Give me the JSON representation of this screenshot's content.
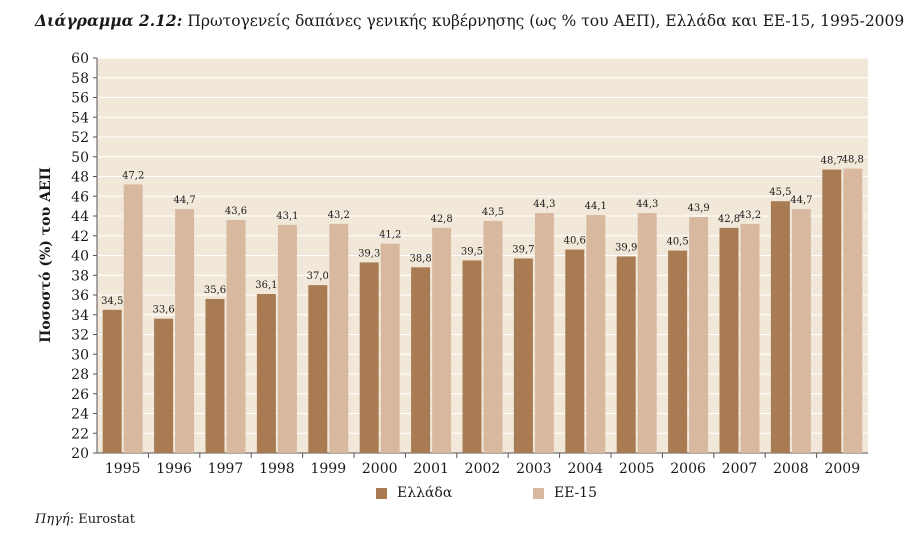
{
  "title": {
    "label": "Διάγραμμα 2.12:",
    "text": " Πρωτογενείς δαπάνες γενικής κυβέρνησης (ως % του ΑΕΠ), Ελλάδα και ΕΕ-15, 1995-2009"
  },
  "source": {
    "label": "Πηγή",
    "text": ": Eurostat"
  },
  "colors": {
    "plot_bg": "#f2e8d9",
    "greece": "#a97b52",
    "eu15": "#d8b9a0",
    "grid": "#ffffff"
  },
  "chart_data": {
    "type": "bar",
    "ylabel": "Ποσοστό (%) του ΑΕΠ",
    "xlabel": "",
    "ylim": [
      20,
      60
    ],
    "ytick_step": 2,
    "grid": true,
    "legend_position": "bottom",
    "categories": [
      "1995",
      "1996",
      "1997",
      "1998",
      "1999",
      "2000",
      "2001",
      "2002",
      "2003",
      "2004",
      "2005",
      "2006",
      "2007",
      "2008",
      "2009"
    ],
    "series": [
      {
        "name": "Ελλάδα",
        "values": [
          34.5,
          33.6,
          35.6,
          36.1,
          37.0,
          39.3,
          38.8,
          39.5,
          39.7,
          40.6,
          39.9,
          40.5,
          42.8,
          45.5,
          48.7
        ],
        "labels": [
          "34,5",
          "33,6",
          "35,6",
          "36,1",
          "37,0",
          "39,3",
          "38,8",
          "39,5",
          "39,7",
          "40,6",
          "39,9",
          "40,5",
          "42,8",
          "45,5",
          "48,7"
        ]
      },
      {
        "name": "ΕΕ-15",
        "values": [
          47.2,
          44.7,
          43.6,
          43.1,
          43.2,
          41.2,
          42.8,
          43.5,
          44.3,
          44.1,
          44.3,
          43.9,
          43.2,
          44.7,
          48.8
        ],
        "labels": [
          "47,2",
          "44,7",
          "43,6",
          "43,1",
          "43,2",
          "41,2",
          "42,8",
          "43,5",
          "44,3",
          "44,1",
          "44,3",
          "43,9",
          "43,2",
          "44,7",
          "48,8"
        ]
      }
    ]
  }
}
